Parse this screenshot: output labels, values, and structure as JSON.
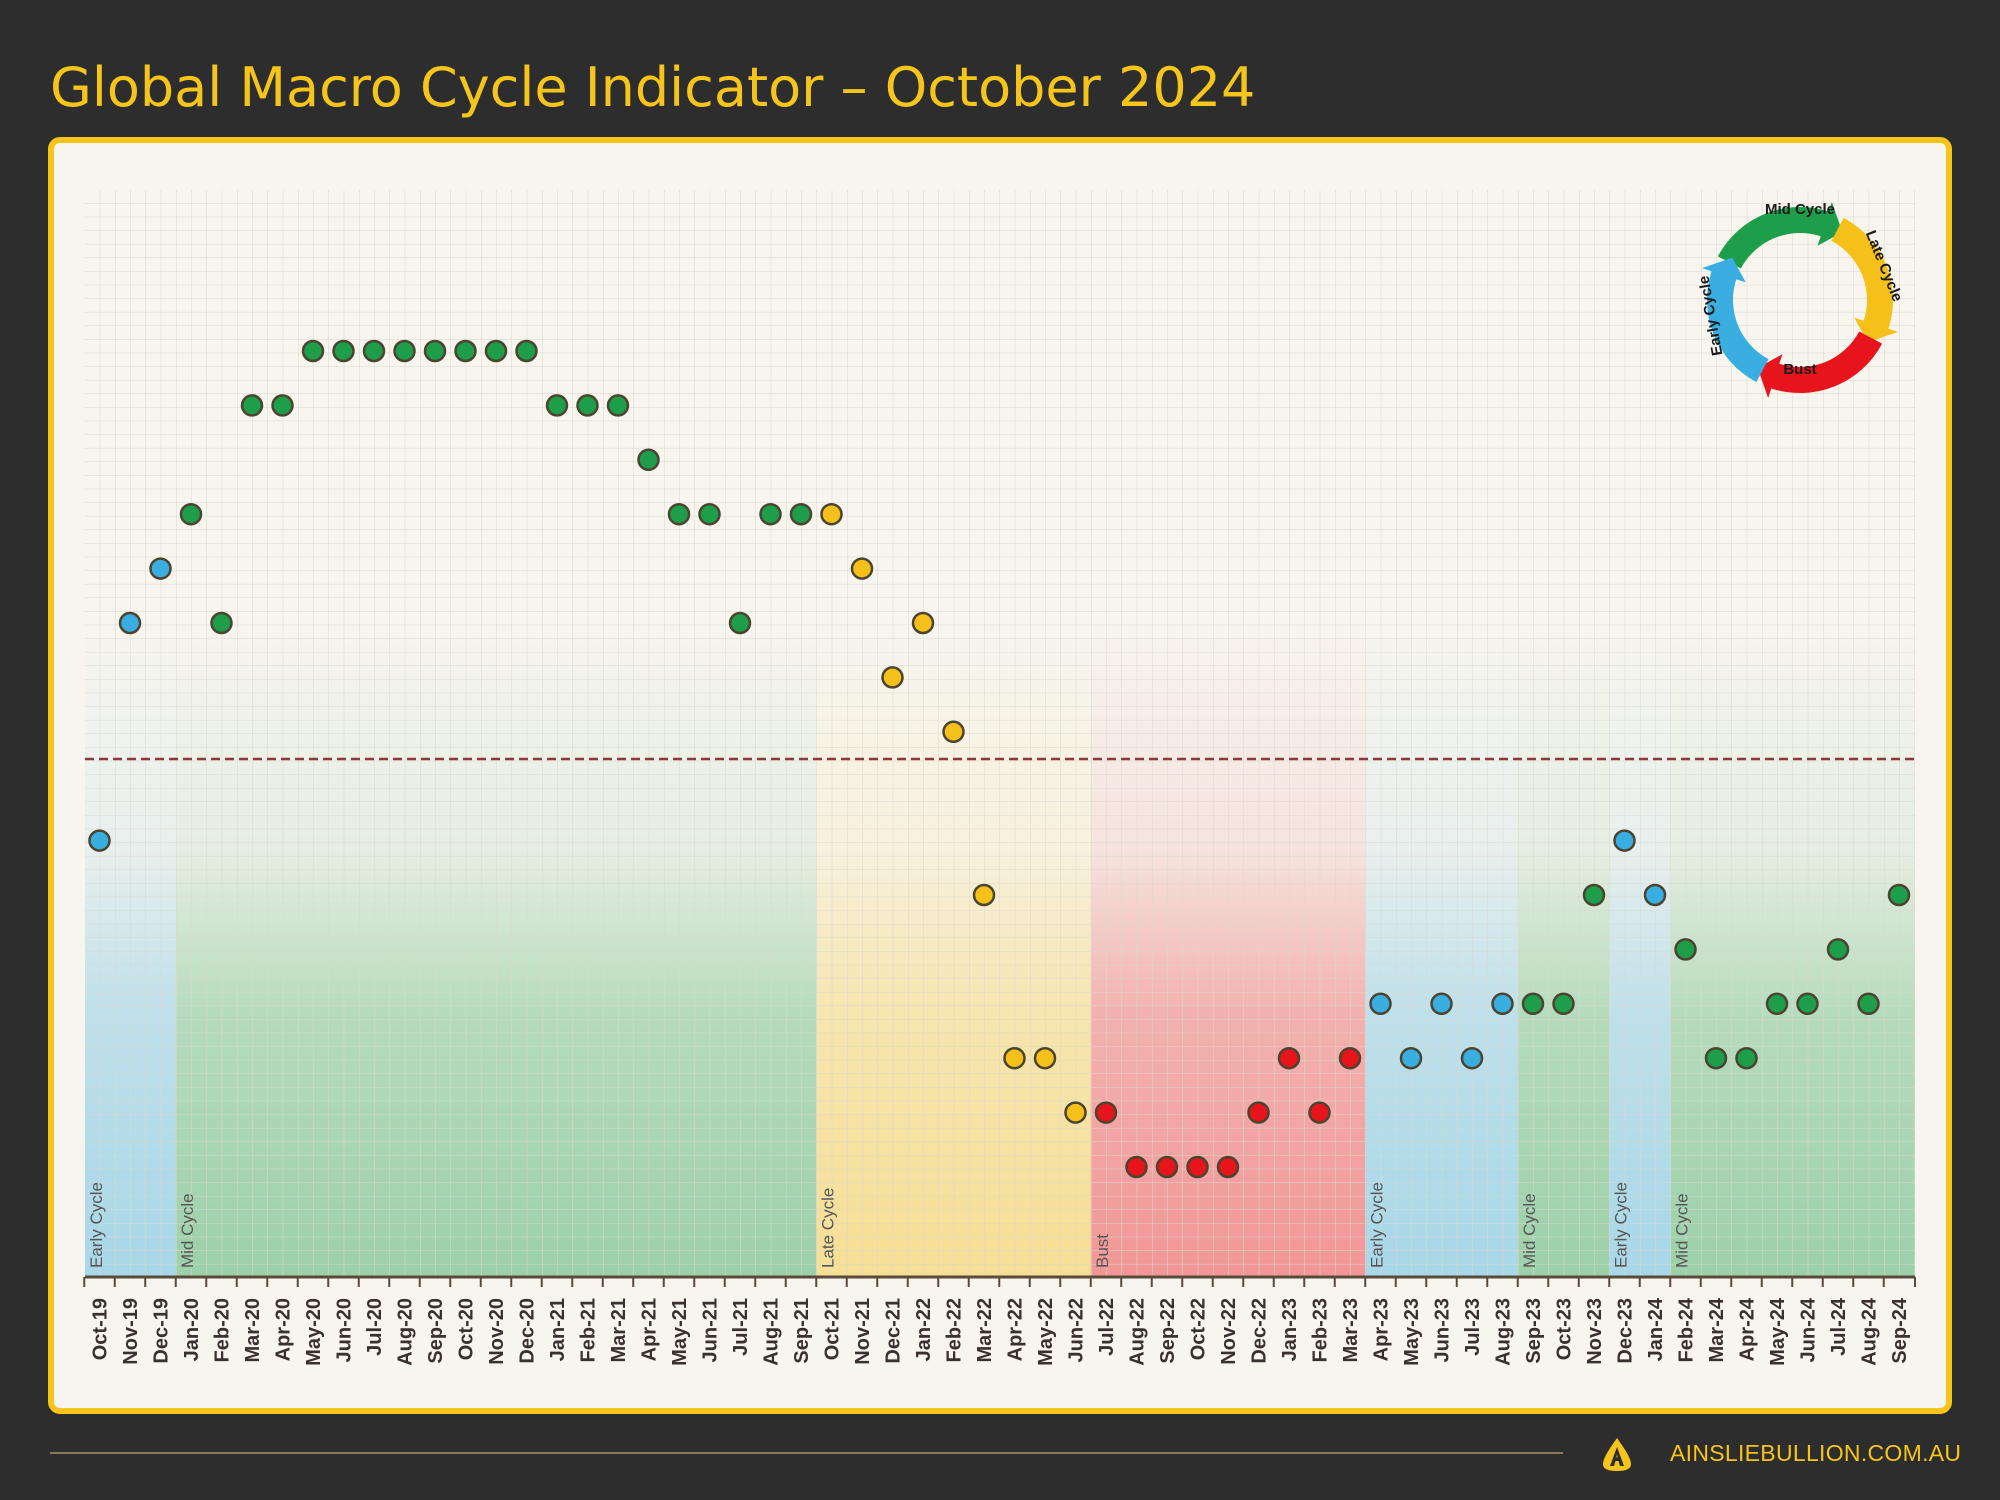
{
  "title": "Global Macro Cycle Indicator – October 2024",
  "footer": {
    "brand": "AINSLIEBULLION.COM.AU",
    "logo_icon": "ainslie-a-logo"
  },
  "colors": {
    "early": "#3aaee0",
    "mid": "#1e9e4a",
    "late": "#f5c01a",
    "bust": "#e8141c",
    "accent": "#f6c51b"
  },
  "legend": {
    "labels": [
      "Early Cycle",
      "Mid Cycle",
      "Late Cycle",
      "Bust"
    ]
  },
  "chart_data": {
    "type": "scatter",
    "title": "Global Macro Cycle Indicator – October 2024",
    "xlabel": "",
    "ylabel": "",
    "grid": true,
    "legend_placement": "top-right",
    "threshold_line": 8.5,
    "ylim": [
      0,
      17
    ],
    "categories": [
      "Oct-19",
      "Nov-19",
      "Dec-19",
      "Jan-20",
      "Feb-20",
      "Mar-20",
      "Apr-20",
      "May-20",
      "Jun-20",
      "Jul-20",
      "Aug-20",
      "Sep-20",
      "Oct-20",
      "Nov-20",
      "Dec-20",
      "Jan-21",
      "Feb-21",
      "Mar-21",
      "Apr-21",
      "May-21",
      "Jun-21",
      "Jul-21",
      "Aug-21",
      "Sep-21",
      "Oct-21",
      "Nov-21",
      "Dec-21",
      "Jan-22",
      "Feb-22",
      "Mar-22",
      "Apr-22",
      "May-22",
      "Jun-22",
      "Jul-22",
      "Aug-22",
      "Sep-22",
      "Oct-22",
      "Nov-22",
      "Dec-22",
      "Jan-23",
      "Feb-23",
      "Mar-23",
      "Apr-23",
      "May-23",
      "Jun-23",
      "Jul-23",
      "Aug-23",
      "Sep-23",
      "Oct-23",
      "Nov-23",
      "Dec-23",
      "Jan-24",
      "Feb-24",
      "Mar-24",
      "Apr-24",
      "May-24",
      "Jun-24",
      "Jul-24",
      "Aug-24",
      "Sep-24"
    ],
    "values": [
      7,
      11,
      12,
      13,
      11,
      15,
      15,
      16,
      16,
      16,
      16,
      16,
      16,
      16,
      16,
      15,
      15,
      15,
      14,
      13,
      13,
      11,
      13,
      13,
      13,
      12,
      10,
      11,
      9,
      6,
      3,
      3,
      2,
      2,
      1,
      1,
      1,
      1,
      2,
      3,
      2,
      3,
      4,
      3,
      4,
      3,
      4,
      4,
      4,
      6,
      7,
      6,
      5,
      3,
      3,
      4,
      4,
      5,
      4,
      6
    ],
    "phase": [
      "early",
      "early",
      "early",
      "mid",
      "mid",
      "mid",
      "mid",
      "mid",
      "mid",
      "mid",
      "mid",
      "mid",
      "mid",
      "mid",
      "mid",
      "mid",
      "mid",
      "mid",
      "mid",
      "mid",
      "mid",
      "mid",
      "mid",
      "mid",
      "late",
      "late",
      "late",
      "late",
      "late",
      "late",
      "late",
      "late",
      "late",
      "bust",
      "bust",
      "bust",
      "bust",
      "bust",
      "bust",
      "bust",
      "bust",
      "bust",
      "early",
      "early",
      "early",
      "early",
      "early",
      "mid",
      "mid",
      "mid",
      "early",
      "early",
      "mid",
      "mid",
      "mid",
      "mid",
      "mid",
      "mid",
      "mid",
      "mid"
    ],
    "phase_bands": [
      {
        "label": "Early Cycle",
        "phase": "early",
        "start": "Oct-19",
        "end": "Dec-19"
      },
      {
        "label": "Mid Cycle",
        "phase": "mid",
        "start": "Jan-20",
        "end": "Sep-21"
      },
      {
        "label": "Late Cycle",
        "phase": "late",
        "start": "Oct-21",
        "end": "Jun-22"
      },
      {
        "label": "Bust",
        "phase": "bust",
        "start": "Jul-22",
        "end": "Mar-23"
      },
      {
        "label": "Early Cycle",
        "phase": "early",
        "start": "Apr-23",
        "end": "Aug-23"
      },
      {
        "label": "Mid Cycle",
        "phase": "mid",
        "start": "Sep-23",
        "end": "Nov-23"
      },
      {
        "label": "Early Cycle",
        "phase": "early",
        "start": "Dec-23",
        "end": "Jan-24"
      },
      {
        "label": "Mid Cycle",
        "phase": "mid",
        "start": "Feb-24",
        "end": "Sep-24"
      }
    ]
  }
}
